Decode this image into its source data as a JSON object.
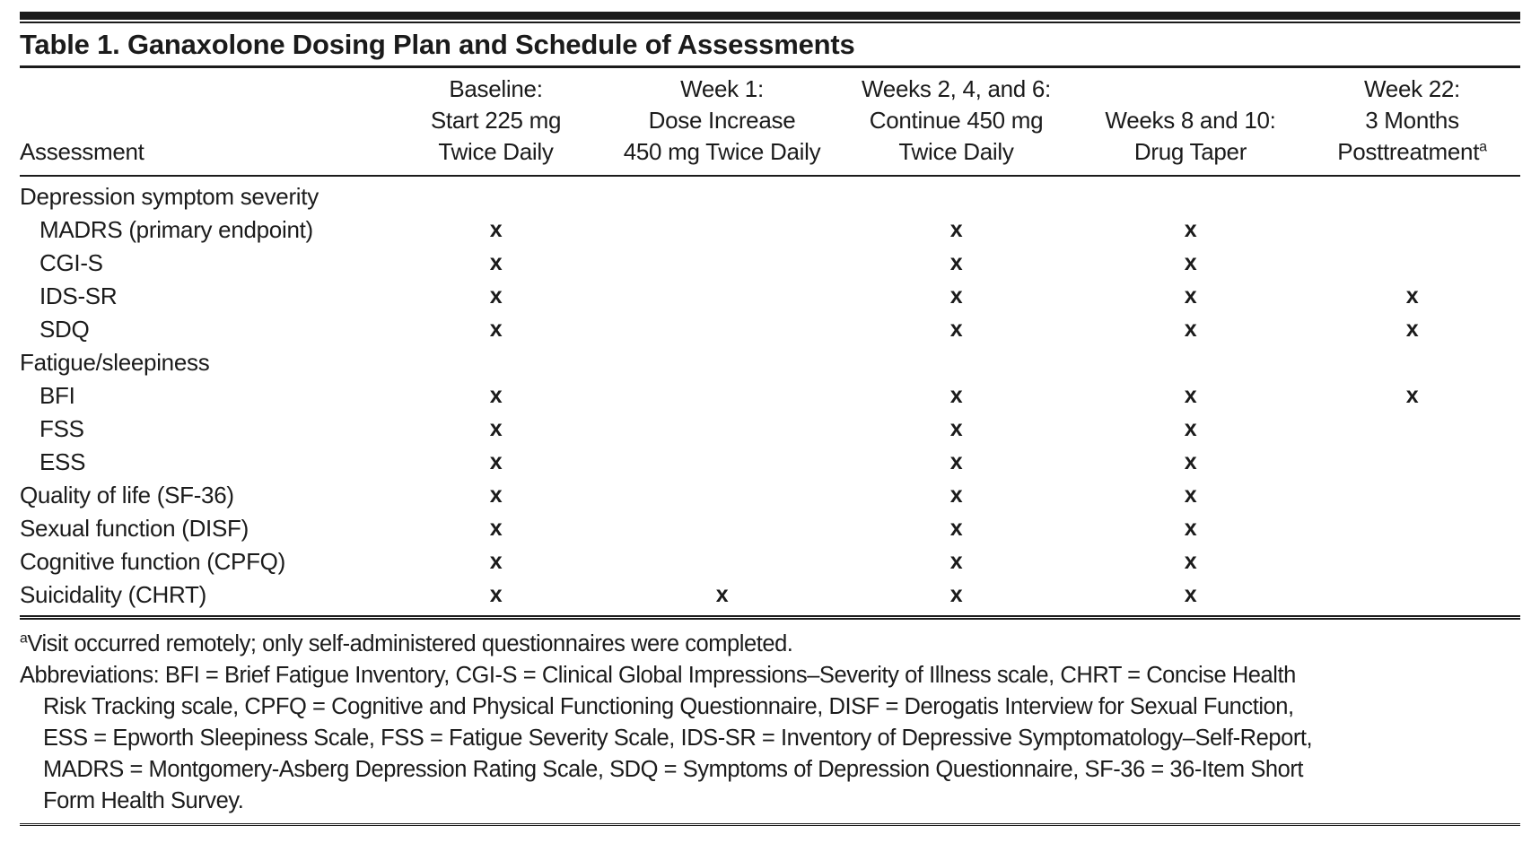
{
  "title": "Table 1. Ganaxolone Dosing Plan and Schedule of Assessments",
  "colors": {
    "text": "#1b1b1b",
    "background": "#ffffff",
    "rule": "#1b1b1b"
  },
  "table": {
    "mark_glyph": "x",
    "columns": [
      {
        "id": "assessment",
        "align": "left",
        "header_lines": [
          "Assessment"
        ]
      },
      {
        "id": "baseline",
        "align": "center",
        "header_lines": [
          "Baseline:",
          "Start 225 mg",
          "Twice Daily"
        ]
      },
      {
        "id": "week-1",
        "align": "center",
        "header_lines": [
          "Week 1:",
          "Dose Increase",
          "450 mg Twice Daily"
        ]
      },
      {
        "id": "weeks-2-4-6",
        "align": "center",
        "header_lines": [
          "Weeks 2, 4, and 6:",
          "Continue 450 mg",
          "Twice Daily"
        ]
      },
      {
        "id": "weeks-8-10",
        "align": "center",
        "header_lines": [
          "Weeks 8 and 10:",
          "Drug Taper"
        ]
      },
      {
        "id": "week-22",
        "align": "center",
        "header_lines": [
          "Week 22:",
          "3 Months",
          "Posttreatment"
        ],
        "header_superscript": "a"
      }
    ],
    "rows": [
      {
        "label": "Depression symptom severity",
        "indent": 0,
        "marks": [
          "",
          "",
          "",
          "",
          ""
        ]
      },
      {
        "label": "MADRS (primary endpoint)",
        "indent": 1,
        "marks": [
          "x",
          "",
          "x",
          "x",
          ""
        ]
      },
      {
        "label": "CGI-S",
        "indent": 1,
        "marks": [
          "x",
          "",
          "x",
          "x",
          ""
        ]
      },
      {
        "label": "IDS-SR",
        "indent": 1,
        "marks": [
          "x",
          "",
          "x",
          "x",
          "x"
        ]
      },
      {
        "label": "SDQ",
        "indent": 1,
        "marks": [
          "x",
          "",
          "x",
          "x",
          "x"
        ]
      },
      {
        "label": "Fatigue/sleepiness",
        "indent": 0,
        "marks": [
          "",
          "",
          "",
          "",
          ""
        ]
      },
      {
        "label": "BFI",
        "indent": 1,
        "marks": [
          "x",
          "",
          "x",
          "x",
          "x"
        ]
      },
      {
        "label": "FSS",
        "indent": 1,
        "marks": [
          "x",
          "",
          "x",
          "x",
          ""
        ]
      },
      {
        "label": "ESS",
        "indent": 1,
        "marks": [
          "x",
          "",
          "x",
          "x",
          ""
        ]
      },
      {
        "label": "Quality of life (SF-36)",
        "indent": 0,
        "marks": [
          "x",
          "",
          "x",
          "x",
          ""
        ]
      },
      {
        "label": "Sexual function (DISF)",
        "indent": 0,
        "marks": [
          "x",
          "",
          "x",
          "x",
          ""
        ]
      },
      {
        "label": "Cognitive function (CPFQ)",
        "indent": 0,
        "marks": [
          "x",
          "",
          "x",
          "x",
          ""
        ]
      },
      {
        "label": "Suicidality (CHRT)",
        "indent": 0,
        "marks": [
          "x",
          "x",
          "x",
          "x",
          ""
        ]
      }
    ]
  },
  "footnotes": {
    "remote_visit": {
      "marker": "a",
      "text": "Visit occurred remotely; only self-administered questionnaires were completed."
    },
    "abbreviations_lines": [
      "Abbreviations: BFI = Brief Fatigue Inventory, CGI-S = Clinical Global Impressions–Severity of Illness scale, CHRT = Concise Health",
      "Risk Tracking scale, CPFQ = Cognitive and Physical Functioning Questionnaire, DISF = Derogatis Interview for Sexual Function,",
      "ESS = Epworth Sleepiness Scale, FSS = Fatigue Severity Scale, IDS-SR = Inventory of Depressive Symptomatology–Self-Report,",
      "MADRS = Montgomery-Asberg Depression Rating Scale, SDQ = Symptoms of Depression Questionnaire, SF-36 = 36-Item Short",
      "Form Health Survey."
    ]
  }
}
